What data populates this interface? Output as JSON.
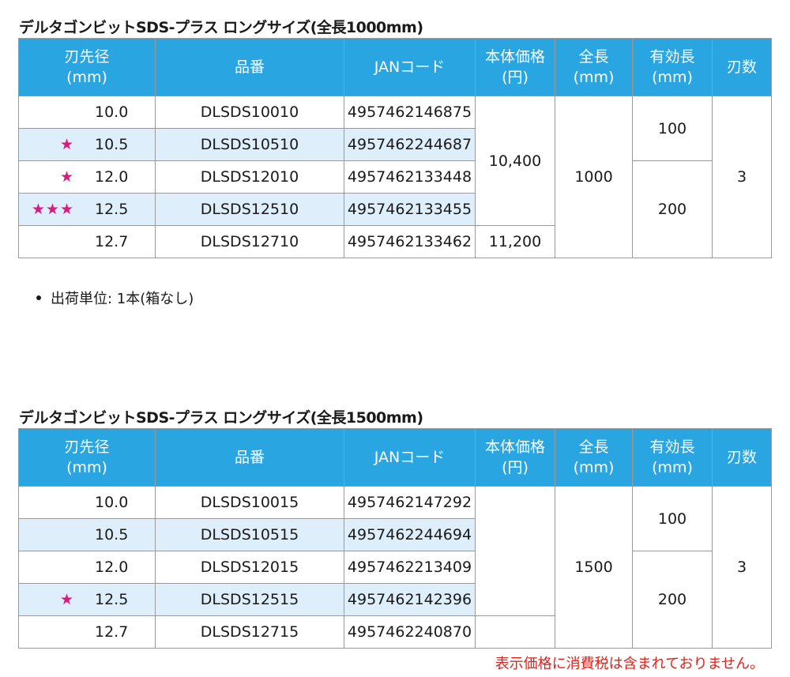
{
  "headers": {
    "diameter_l1": "刃先径",
    "diameter_l2": "(mm)",
    "part": "品番",
    "jan": "JANコード",
    "price_l1": "本体価格",
    "price_l2": "(円)",
    "length_l1": "全長",
    "length_l2": "(mm)",
    "effective_l1": "有効長",
    "effective_l2": "(mm)",
    "blades": "刃数"
  },
  "table1": {
    "title": "デルタゴンビットSDS-プラス ロングサイズ(全長1000mm)",
    "rows": [
      {
        "stars": "",
        "diameter": "10.0",
        "part": "DLSDS10010",
        "jan": "4957462146875"
      },
      {
        "stars": "★",
        "diameter": "10.5",
        "part": "DLSDS10510",
        "jan": "4957462244687"
      },
      {
        "stars": "★",
        "diameter": "12.0",
        "part": "DLSDS12010",
        "jan": "4957462133448"
      },
      {
        "stars": "★★★",
        "diameter": "12.5",
        "part": "DLSDS12510",
        "jan": "4957462133455"
      },
      {
        "stars": "",
        "diameter": "12.7",
        "part": "DLSDS12710",
        "jan": "4957462133462"
      }
    ],
    "price_a": "10,400",
    "price_b": "11,200",
    "length": "1000",
    "effective_a": "100",
    "effective_b": "200",
    "blades": "3"
  },
  "note": "出荷単位:  1本(箱なし)",
  "table2": {
    "title": "デルタゴンビットSDS-プラス ロングサイズ(全長1500mm)",
    "rows": [
      {
        "stars": "",
        "diameter": "10.0",
        "part": "DLSDS10015",
        "jan": "4957462147292"
      },
      {
        "stars": "",
        "diameter": "10.5",
        "part": "DLSDS10515",
        "jan": "4957462244694"
      },
      {
        "stars": "",
        "diameter": "12.0",
        "part": "DLSDS12015",
        "jan": "4957462213409"
      },
      {
        "stars": "★",
        "diameter": "12.5",
        "part": "DLSDS12515",
        "jan": "4957462142396"
      },
      {
        "stars": "",
        "diameter": "12.7",
        "part": "DLSDS12715",
        "jan": "4957462240870"
      }
    ],
    "length": "1500",
    "effective_a": "100",
    "effective_b": "200",
    "blades": "3"
  },
  "tax_note": "表示価格に消費税は含まれておりません。",
  "colors": {
    "header_bg": "#29a6e1",
    "alt_row_bg": "#dfeefb",
    "star": "#d81b7e",
    "tax_note": "#e0211b"
  }
}
